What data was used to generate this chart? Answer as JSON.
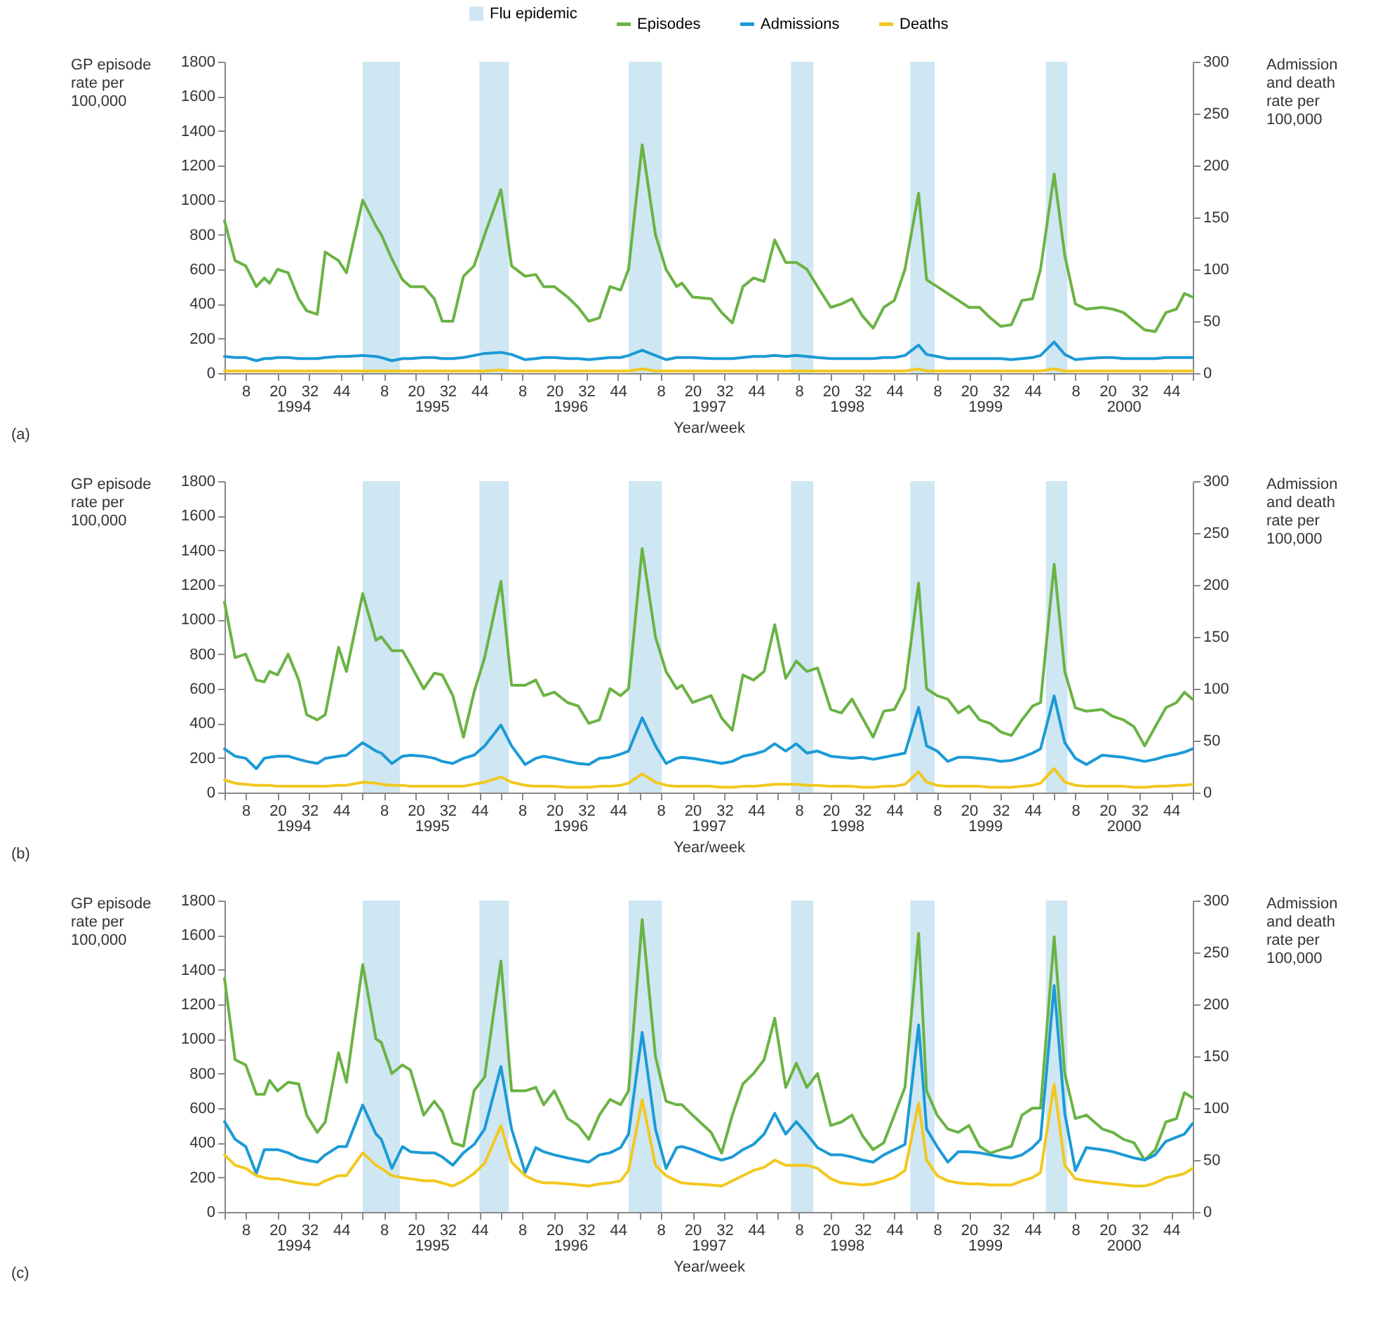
{
  "chart_data": [
    {
      "type": "line",
      "ylabel": "GP episode rate per 100,000",
      "y2label": "Admission and death rate per 100,000",
      "xlabel": "Year/week",
      "annotations": [
        "(a)"
      ],
      "legend": "top",
      "x": [
        "1994-01-01",
        "1994-01-29",
        "1994-02-26",
        "1994-03-26",
        "1994-04-16",
        "1994-04-30",
        "1994-05-21",
        "1994-06-18",
        "1994-07-16",
        "1994-08-06",
        "1994-09-03",
        "1994-09-24",
        "1994-10-29",
        "1994-11-19",
        "1995-01-01",
        "1995-02-05",
        "1995-02-19",
        "1995-03-19",
        "1995-04-16",
        "1995-05-07",
        "1995-06-11",
        "1995-07-09",
        "1995-07-30",
        "1995-08-27",
        "1995-09-24",
        "1995-10-22",
        "1995-11-19",
        "1996-01-01",
        "1996-01-29",
        "1996-03-05",
        "1996-04-02",
        "1996-04-23",
        "1996-05-21",
        "1996-06-25",
        "1996-07-23",
        "1996-08-20",
        "1996-09-17",
        "1996-10-15",
        "1996-11-12",
        "1996-12-03",
        "1997-01-08",
        "1997-02-12",
        "1997-03-12",
        "1997-04-09",
        "1997-04-23",
        "1997-05-21",
        "1997-07-09",
        "1997-08-06",
        "1997-09-03",
        "1997-10-01",
        "1997-10-29",
        "1997-11-26",
        "1997-12-24",
        "1998-01-22",
        "1998-02-19",
        "1998-03-19",
        "1998-04-16",
        "1998-05-21",
        "1998-06-18",
        "1998-07-16",
        "1998-08-13",
        "1998-09-10",
        "1998-10-08",
        "1998-11-05",
        "1998-12-03",
        "1999-01-08",
        "1999-01-29",
        "1999-02-26",
        "1999-03-26",
        "1999-04-23",
        "1999-05-21",
        "1999-06-18",
        "1999-07-16",
        "1999-08-13",
        "1999-09-10",
        "1999-10-08",
        "1999-11-05",
        "1999-11-26",
        "2000-01-01",
        "2000-01-29",
        "2000-02-26",
        "2000-03-26",
        "2000-05-07",
        "2000-06-04",
        "2000-07-02",
        "2000-07-30",
        "2000-08-27",
        "2000-09-24",
        "2000-10-22",
        "2000-11-19",
        "2000-12-10",
        "2000-12-31"
      ],
      "xlim": [
        "1994-01-01",
        "2001-01-01"
      ],
      "xticks": [
        {
          "value": "1994-01-01",
          "label": null
        },
        {
          "value": "1994-02-26",
          "label": "8"
        },
        {
          "value": "1994-05-21",
          "label": "20"
        },
        {
          "value": "1994-08-13",
          "label": "32"
        },
        {
          "value": "1994-11-05",
          "label": "44"
        },
        {
          "value": "1995-01-01",
          "label": null
        },
        {
          "value": "1995-02-26",
          "label": "8"
        },
        {
          "value": "1995-05-21",
          "label": "20"
        },
        {
          "value": "1995-08-13",
          "label": "32"
        },
        {
          "value": "1995-11-05",
          "label": "44"
        },
        {
          "value": "1996-01-01",
          "label": null
        },
        {
          "value": "1996-02-26",
          "label": "8"
        },
        {
          "value": "1996-05-21",
          "label": "20"
        },
        {
          "value": "1996-08-13",
          "label": "32"
        },
        {
          "value": "1996-11-05",
          "label": "44"
        },
        {
          "value": "1997-01-01",
          "label": null
        },
        {
          "value": "1997-02-26",
          "label": "8"
        },
        {
          "value": "1997-05-21",
          "label": "20"
        },
        {
          "value": "1997-08-13",
          "label": "32"
        },
        {
          "value": "1997-11-05",
          "label": "44"
        },
        {
          "value": "1998-01-01",
          "label": null
        },
        {
          "value": "1998-02-26",
          "label": "8"
        },
        {
          "value": "1998-05-21",
          "label": "20"
        },
        {
          "value": "1998-08-13",
          "label": "32"
        },
        {
          "value": "1998-11-05",
          "label": "44"
        },
        {
          "value": "1999-01-01",
          "label": null
        },
        {
          "value": "1999-02-26",
          "label": "8"
        },
        {
          "value": "1999-05-21",
          "label": "20"
        },
        {
          "value": "1999-08-13",
          "label": "32"
        },
        {
          "value": "1999-11-05",
          "label": "44"
        },
        {
          "value": "2000-01-01",
          "label": null
        },
        {
          "value": "2000-02-26",
          "label": "8"
        },
        {
          "value": "2000-05-21",
          "label": "20"
        },
        {
          "value": "2000-08-13",
          "label": "32"
        },
        {
          "value": "2000-11-05",
          "label": "44"
        },
        {
          "value": "2001-01-01",
          "label": null
        }
      ],
      "x2lim": [
        "1994-01-01",
        "2001-01-01"
      ],
      "x2ticks": [
        {
          "value": "1994-07-02",
          "label": "1994"
        },
        {
          "value": "1995-07-02",
          "label": "1995"
        },
        {
          "value": "1996-07-02",
          "label": "1996"
        },
        {
          "value": "1997-07-02",
          "label": "1997"
        },
        {
          "value": "1998-07-02",
          "label": "1998"
        },
        {
          "value": "1999-07-02",
          "label": "1999"
        },
        {
          "value": "2000-07-02",
          "label": "2000"
        }
      ],
      "ylim": [
        0,
        1800
      ],
      "yticks": [
        0,
        200,
        400,
        600,
        800,
        1000,
        1200,
        1400,
        1600,
        1800
      ],
      "y2lim": [
        0,
        300
      ],
      "y2ticks": [
        0,
        50,
        100,
        150,
        200,
        250,
        300
      ],
      "bands": [
        {
          "axis": "x",
          "from": "1995-01-01",
          "to": "1995-04-09",
          "color": "#cfe6f3",
          "label": "Flu epidemic"
        },
        {
          "axis": "x",
          "from": "1995-11-05",
          "to": "1996-01-22",
          "color": "#cfe6f3"
        },
        {
          "axis": "x",
          "from": "1996-12-03",
          "to": "1997-03-01",
          "color": "#cfe6f3"
        },
        {
          "axis": "x",
          "from": "1998-02-05",
          "to": "1998-04-05",
          "color": "#cfe6f3"
        },
        {
          "axis": "x",
          "from": "1998-12-17",
          "to": "1999-02-19",
          "color": "#cfe6f3"
        },
        {
          "axis": "x",
          "from": "1999-12-10",
          "to": "2000-02-05",
          "color": "#cfe6f3"
        }
      ],
      "series": [
        {
          "name": "Episodes",
          "color": "#6ab344",
          "values": [
            880,
            650,
            620,
            500,
            550,
            520,
            600,
            580,
            430,
            360,
            340,
            700,
            650,
            580,
            1000,
            850,
            800,
            660,
            540,
            500,
            500,
            430,
            300,
            300,
            560,
            620,
            800,
            1060,
            620,
            560,
            570,
            500,
            500,
            440,
            380,
            300,
            320,
            500,
            480,
            600,
            1320,
            800,
            600,
            500,
            520,
            440,
            430,
            350,
            290,
            500,
            550,
            530,
            770,
            640,
            640,
            600,
            500,
            380,
            400,
            430,
            330,
            260,
            380,
            420,
            600,
            1040,
            540,
            500,
            460,
            420,
            380,
            380,
            320,
            270,
            280,
            420,
            430,
            600,
            1150,
            680,
            400,
            370,
            380,
            370,
            350,
            300,
            250,
            240,
            350,
            370,
            460,
            440
          ]
        },
        {
          "name": "Admissions",
          "color": "#1b9ad6",
          "axis": "y2",
          "values": [
            16,
            15,
            15,
            12,
            14,
            14,
            15,
            15,
            14,
            14,
            14,
            15,
            16,
            16,
            17,
            16,
            15,
            12,
            14,
            14,
            15,
            15,
            14,
            14,
            15,
            17,
            19,
            20,
            18,
            13,
            14,
            15,
            15,
            14,
            14,
            13,
            14,
            15,
            15,
            17,
            22,
            17,
            13,
            15,
            15,
            15,
            14,
            14,
            14,
            15,
            16,
            16,
            17,
            16,
            17,
            16,
            15,
            14,
            14,
            14,
            14,
            14,
            15,
            15,
            17,
            27,
            18,
            16,
            14,
            14,
            14,
            14,
            14,
            14,
            13,
            14,
            15,
            17,
            30,
            18,
            13,
            14,
            15,
            15,
            14,
            14,
            14,
            14,
            15,
            15,
            15,
            15
          ]
        },
        {
          "name": "Deaths",
          "color": "#f2c81e",
          "axis": "y2",
          "values": [
            2,
            2,
            2,
            2,
            2,
            2,
            2,
            2,
            2,
            2,
            2,
            2,
            2,
            2,
            2,
            2,
            2,
            2,
            2,
            2,
            2,
            2,
            2,
            2,
            2,
            2,
            2,
            3,
            2,
            2,
            2,
            2,
            2,
            2,
            2,
            2,
            2,
            2,
            2,
            2,
            4,
            2,
            2,
            2,
            2,
            2,
            2,
            2,
            2,
            2,
            2,
            2,
            2,
            2,
            2,
            2,
            2,
            2,
            2,
            2,
            2,
            2,
            2,
            2,
            2,
            4,
            2,
            2,
            2,
            2,
            2,
            2,
            2,
            2,
            2,
            2,
            2,
            2,
            4,
            2,
            2,
            2,
            2,
            2,
            2,
            2,
            2,
            2,
            2,
            2,
            2,
            2
          ]
        }
      ]
    },
    {
      "type": "line",
      "ylabel": "GP episode rate per 100,000",
      "y2label": "Admission and death rate per 100,000",
      "xlabel": "Year/week",
      "annotations": [
        "(b)"
      ],
      "x": [
        "1994-01-01",
        "1994-01-29",
        "1994-02-26",
        "1994-03-26",
        "1994-04-16",
        "1994-04-30",
        "1994-05-21",
        "1994-06-18",
        "1994-07-16",
        "1994-08-06",
        "1994-09-03",
        "1994-09-24",
        "1994-10-29",
        "1994-11-19",
        "1995-01-01",
        "1995-02-05",
        "1995-02-19",
        "1995-03-19",
        "1995-04-16",
        "1995-05-07",
        "1995-06-11",
        "1995-07-09",
        "1995-07-30",
        "1995-08-27",
        "1995-09-24",
        "1995-10-22",
        "1995-11-19",
        "1996-01-01",
        "1996-01-29",
        "1996-03-05",
        "1996-04-02",
        "1996-04-23",
        "1996-05-21",
        "1996-06-25",
        "1996-07-23",
        "1996-08-20",
        "1996-09-17",
        "1996-10-15",
        "1996-11-12",
        "1996-12-03",
        "1997-01-08",
        "1997-02-12",
        "1997-03-12",
        "1997-04-09",
        "1997-04-23",
        "1997-05-21",
        "1997-07-09",
        "1997-08-06",
        "1997-09-03",
        "1997-10-01",
        "1997-10-29",
        "1997-11-26",
        "1997-12-24",
        "1998-01-22",
        "1998-02-19",
        "1998-03-19",
        "1998-04-16",
        "1998-05-21",
        "1998-06-18",
        "1998-07-16",
        "1998-08-13",
        "1998-09-10",
        "1998-10-08",
        "1998-11-05",
        "1998-12-03",
        "1999-01-08",
        "1999-01-29",
        "1999-02-26",
        "1999-03-26",
        "1999-04-23",
        "1999-05-21",
        "1999-06-18",
        "1999-07-16",
        "1999-08-13",
        "1999-09-10",
        "1999-10-08",
        "1999-11-05",
        "1999-11-26",
        "2000-01-01",
        "2000-01-29",
        "2000-02-26",
        "2000-03-26",
        "2000-05-07",
        "2000-06-04",
        "2000-07-02",
        "2000-07-30",
        "2000-08-27",
        "2000-09-24",
        "2000-10-22",
        "2000-11-19",
        "2000-12-10",
        "2000-12-31"
      ],
      "xlim": [
        "1994-01-01",
        "2001-01-01"
      ],
      "xticks": [
        {
          "value": "1994-01-01",
          "label": null
        },
        {
          "value": "1994-02-26",
          "label": "8"
        },
        {
          "value": "1994-05-21",
          "label": "20"
        },
        {
          "value": "1994-08-13",
          "label": "32"
        },
        {
          "value": "1994-11-05",
          "label": "44"
        },
        {
          "value": "1995-01-01",
          "label": null
        },
        {
          "value": "1995-02-26",
          "label": "8"
        },
        {
          "value": "1995-05-21",
          "label": "20"
        },
        {
          "value": "1995-08-13",
          "label": "32"
        },
        {
          "value": "1995-11-05",
          "label": "44"
        },
        {
          "value": "1996-01-01",
          "label": null
        },
        {
          "value": "1996-02-26",
          "label": "8"
        },
        {
          "value": "1996-05-21",
          "label": "20"
        },
        {
          "value": "1996-08-13",
          "label": "32"
        },
        {
          "value": "1996-11-05",
          "label": "44"
        },
        {
          "value": "1997-01-01",
          "label": null
        },
        {
          "value": "1997-02-26",
          "label": "8"
        },
        {
          "value": "1997-05-21",
          "label": "20"
        },
        {
          "value": "1997-08-13",
          "label": "32"
        },
        {
          "value": "1997-11-05",
          "label": "44"
        },
        {
          "value": "1998-01-01",
          "label": null
        },
        {
          "value": "1998-02-26",
          "label": "8"
        },
        {
          "value": "1998-05-21",
          "label": "20"
        },
        {
          "value": "1998-08-13",
          "label": "32"
        },
        {
          "value": "1998-11-05",
          "label": "44"
        },
        {
          "value": "1999-01-01",
          "label": null
        },
        {
          "value": "1999-02-26",
          "label": "8"
        },
        {
          "value": "1999-05-21",
          "label": "20"
        },
        {
          "value": "1999-08-13",
          "label": "32"
        },
        {
          "value": "1999-11-05",
          "label": "44"
        },
        {
          "value": "2000-01-01",
          "label": null
        },
        {
          "value": "2000-02-26",
          "label": "8"
        },
        {
          "value": "2000-05-21",
          "label": "20"
        },
        {
          "value": "2000-08-13",
          "label": "32"
        },
        {
          "value": "2000-11-05",
          "label": "44"
        },
        {
          "value": "2001-01-01",
          "label": null
        }
      ],
      "x2lim": [
        "1994-01-01",
        "2001-01-01"
      ],
      "x2ticks": [
        {
          "value": "1994-07-02",
          "label": "1994"
        },
        {
          "value": "1995-07-02",
          "label": "1995"
        },
        {
          "value": "1996-07-02",
          "label": "1996"
        },
        {
          "value": "1997-07-02",
          "label": "1997"
        },
        {
          "value": "1998-07-02",
          "label": "1998"
        },
        {
          "value": "1999-07-02",
          "label": "1999"
        },
        {
          "value": "2000-07-02",
          "label": "2000"
        }
      ],
      "ylim": [
        0,
        1800
      ],
      "yticks": [
        0,
        200,
        400,
        600,
        800,
        1000,
        1200,
        1400,
        1600,
        1800
      ],
      "y2lim": [
        0,
        300
      ],
      "y2ticks": [
        0,
        50,
        100,
        150,
        200,
        250,
        300
      ],
      "bands": [
        {
          "axis": "x",
          "from": "1995-01-01",
          "to": "1995-04-09",
          "color": "#cfe6f3"
        },
        {
          "axis": "x",
          "from": "1995-11-05",
          "to": "1996-01-22",
          "color": "#cfe6f3"
        },
        {
          "axis": "x",
          "from": "1996-12-03",
          "to": "1997-03-01",
          "color": "#cfe6f3"
        },
        {
          "axis": "x",
          "from": "1998-02-05",
          "to": "1998-04-05",
          "color": "#cfe6f3"
        },
        {
          "axis": "x",
          "from": "1998-12-17",
          "to": "1999-02-19",
          "color": "#cfe6f3"
        },
        {
          "axis": "x",
          "from": "1999-12-10",
          "to": "2000-02-05",
          "color": "#cfe6f3"
        }
      ],
      "series": [
        {
          "color": "#6ab344",
          "values": [
            1100,
            780,
            800,
            650,
            640,
            700,
            680,
            800,
            650,
            450,
            420,
            450,
            840,
            700,
            1150,
            880,
            900,
            820,
            820,
            740,
            600,
            690,
            680,
            560,
            320,
            580,
            780,
            1220,
            620,
            620,
            650,
            560,
            580,
            520,
            500,
            400,
            420,
            600,
            560,
            600,
            1410,
            900,
            700,
            600,
            620,
            520,
            560,
            430,
            360,
            680,
            650,
            700,
            970,
            660,
            760,
            700,
            720,
            480,
            460,
            540,
            430,
            320,
            470,
            480,
            600,
            1210,
            600,
            560,
            540,
            460,
            500,
            420,
            400,
            350,
            330,
            420,
            500,
            520,
            1320,
            700,
            490,
            470,
            480,
            440,
            420,
            380,
            270,
            380,
            490,
            520,
            580,
            540
          ]
        },
        {
          "color": "#1b9ad6",
          "axis": "y2",
          "values": [
            42,
            35,
            33,
            23,
            33,
            34,
            35,
            35,
            32,
            30,
            28,
            33,
            35,
            36,
            48,
            40,
            38,
            28,
            35,
            36,
            35,
            33,
            30,
            28,
            33,
            36,
            45,
            65,
            45,
            27,
            33,
            35,
            33,
            30,
            28,
            27,
            33,
            34,
            37,
            40,
            72,
            45,
            28,
            33,
            34,
            33,
            30,
            28,
            30,
            35,
            37,
            40,
            47,
            40,
            47,
            38,
            40,
            35,
            34,
            33,
            34,
            32,
            34,
            36,
            38,
            82,
            45,
            40,
            30,
            34,
            34,
            33,
            32,
            30,
            31,
            34,
            38,
            42,
            93,
            48,
            33,
            27,
            36,
            35,
            34,
            32,
            30,
            32,
            35,
            37,
            39,
            42
          ]
        },
        {
          "color": "#f2c81e",
          "axis": "y2",
          "values": [
            12,
            9,
            8,
            7,
            7,
            7,
            6,
            6,
            6,
            6,
            6,
            6,
            7,
            7,
            10,
            9,
            8,
            7,
            7,
            6,
            6,
            6,
            6,
            6,
            6,
            8,
            10,
            15,
            10,
            7,
            6,
            6,
            6,
            5,
            5,
            5,
            6,
            6,
            7,
            9,
            18,
            10,
            7,
            6,
            6,
            6,
            6,
            5,
            5,
            6,
            6,
            7,
            8,
            8,
            8,
            7,
            7,
            6,
            6,
            6,
            5,
            5,
            6,
            6,
            8,
            20,
            10,
            7,
            6,
            6,
            6,
            6,
            5,
            5,
            5,
            6,
            7,
            9,
            23,
            10,
            7,
            6,
            6,
            6,
            6,
            5,
            5,
            6,
            6,
            7,
            7,
            8
          ]
        }
      ]
    },
    {
      "type": "line",
      "ylabel": "GP episode rate per 100,000",
      "y2label": "Admission and death rate per 100,000",
      "xlabel": "Year/week",
      "annotations": [
        "(c)"
      ],
      "x": [
        "1994-01-01",
        "1994-01-29",
        "1994-02-26",
        "1994-03-26",
        "1994-04-16",
        "1994-04-30",
        "1994-05-21",
        "1994-06-18",
        "1994-07-16",
        "1994-08-06",
        "1994-09-03",
        "1994-09-24",
        "1994-10-29",
        "1994-11-19",
        "1995-01-01",
        "1995-02-05",
        "1995-02-19",
        "1995-03-19",
        "1995-04-16",
        "1995-05-07",
        "1995-06-11",
        "1995-07-09",
        "1995-07-30",
        "1995-08-27",
        "1995-09-24",
        "1995-10-22",
        "1995-11-19",
        "1996-01-01",
        "1996-01-29",
        "1996-03-05",
        "1996-04-02",
        "1996-04-23",
        "1996-05-21",
        "1996-06-25",
        "1996-07-23",
        "1996-08-20",
        "1996-09-17",
        "1996-10-15",
        "1996-11-12",
        "1996-12-03",
        "1997-01-08",
        "1997-02-12",
        "1997-03-12",
        "1997-04-09",
        "1997-04-23",
        "1997-05-21",
        "1997-07-09",
        "1997-08-06",
        "1997-09-03",
        "1997-10-01",
        "1997-10-29",
        "1997-11-26",
        "1997-12-24",
        "1998-01-22",
        "1998-02-19",
        "1998-03-19",
        "1998-04-16",
        "1998-05-21",
        "1998-06-18",
        "1998-07-16",
        "1998-08-13",
        "1998-09-10",
        "1998-10-08",
        "1998-11-05",
        "1998-12-03",
        "1999-01-08",
        "1999-01-29",
        "1999-02-26",
        "1999-03-26",
        "1999-04-23",
        "1999-05-21",
        "1999-06-18",
        "1999-07-16",
        "1999-08-13",
        "1999-09-10",
        "1999-10-08",
        "1999-11-05",
        "1999-11-26",
        "2000-01-01",
        "2000-01-29",
        "2000-02-26",
        "2000-03-26",
        "2000-05-07",
        "2000-06-04",
        "2000-07-02",
        "2000-07-30",
        "2000-08-27",
        "2000-09-24",
        "2000-10-22",
        "2000-11-19",
        "2000-12-10",
        "2000-12-31"
      ],
      "xlim": [
        "1994-01-01",
        "2001-01-01"
      ],
      "xticks": [
        {
          "value": "1994-01-01",
          "label": null
        },
        {
          "value": "1994-02-26",
          "label": "8"
        },
        {
          "value": "1994-05-21",
          "label": "20"
        },
        {
          "value": "1994-08-13",
          "label": "32"
        },
        {
          "value": "1994-11-05",
          "label": "44"
        },
        {
          "value": "1995-01-01",
          "label": null
        },
        {
          "value": "1995-02-26",
          "label": "8"
        },
        {
          "value": "1995-05-21",
          "label": "20"
        },
        {
          "value": "1995-08-13",
          "label": "32"
        },
        {
          "value": "1995-11-05",
          "label": "44"
        },
        {
          "value": "1996-01-01",
          "label": null
        },
        {
          "value": "1996-02-26",
          "label": "8"
        },
        {
          "value": "1996-05-21",
          "label": "20"
        },
        {
          "value": "1996-08-13",
          "label": "32"
        },
        {
          "value": "1996-11-05",
          "label": "44"
        },
        {
          "value": "1997-01-01",
          "label": null
        },
        {
          "value": "1997-02-26",
          "label": "8"
        },
        {
          "value": "1997-05-21",
          "label": "20"
        },
        {
          "value": "1997-08-13",
          "label": "32"
        },
        {
          "value": "1997-11-05",
          "label": "44"
        },
        {
          "value": "1998-01-01",
          "label": null
        },
        {
          "value": "1998-02-26",
          "label": "8"
        },
        {
          "value": "1998-05-21",
          "label": "20"
        },
        {
          "value": "1998-08-13",
          "label": "32"
        },
        {
          "value": "1998-11-05",
          "label": "44"
        },
        {
          "value": "1999-01-01",
          "label": null
        },
        {
          "value": "1999-02-26",
          "label": "8"
        },
        {
          "value": "1999-05-21",
          "label": "20"
        },
        {
          "value": "1999-08-13",
          "label": "32"
        },
        {
          "value": "1999-11-05",
          "label": "44"
        },
        {
          "value": "2000-01-01",
          "label": null
        },
        {
          "value": "2000-02-26",
          "label": "8"
        },
        {
          "value": "2000-05-21",
          "label": "20"
        },
        {
          "value": "2000-08-13",
          "label": "32"
        },
        {
          "value": "2000-11-05",
          "label": "44"
        },
        {
          "value": "2001-01-01",
          "label": null
        }
      ],
      "x2lim": [
        "1994-01-01",
        "2001-01-01"
      ],
      "x2ticks": [
        {
          "value": "1994-07-02",
          "label": "1994"
        },
        {
          "value": "1995-07-02",
          "label": "1995"
        },
        {
          "value": "1996-07-02",
          "label": "1996"
        },
        {
          "value": "1997-07-02",
          "label": "1997"
        },
        {
          "value": "1998-07-02",
          "label": "1998"
        },
        {
          "value": "1999-07-02",
          "label": "1999"
        },
        {
          "value": "2000-07-02",
          "label": "2000"
        }
      ],
      "ylim": [
        0,
        1800
      ],
      "yticks": [
        0,
        200,
        400,
        600,
        800,
        1000,
        1200,
        1400,
        1600,
        1800
      ],
      "y2lim": [
        0,
        300
      ],
      "y2ticks": [
        0,
        50,
        100,
        150,
        200,
        250,
        300
      ],
      "bands": [
        {
          "axis": "x",
          "from": "1995-01-01",
          "to": "1995-04-09",
          "color": "#cfe6f3"
        },
        {
          "axis": "x",
          "from": "1995-11-05",
          "to": "1996-01-22",
          "color": "#cfe6f3"
        },
        {
          "axis": "x",
          "from": "1996-12-03",
          "to": "1997-03-01",
          "color": "#cfe6f3"
        },
        {
          "axis": "x",
          "from": "1998-02-05",
          "to": "1998-04-05",
          "color": "#cfe6f3"
        },
        {
          "axis": "x",
          "from": "1998-12-17",
          "to": "1999-02-19",
          "color": "#cfe6f3"
        },
        {
          "axis": "x",
          "from": "1999-12-10",
          "to": "2000-02-05",
          "color": "#cfe6f3"
        }
      ],
      "series": [
        {
          "color": "#6ab344",
          "values": [
            1350,
            880,
            850,
            680,
            680,
            760,
            700,
            750,
            740,
            560,
            460,
            520,
            920,
            750,
            1430,
            1000,
            980,
            800,
            850,
            820,
            560,
            640,
            580,
            400,
            380,
            700,
            780,
            1450,
            700,
            700,
            720,
            620,
            700,
            540,
            500,
            420,
            560,
            650,
            620,
            700,
            1690,
            900,
            640,
            620,
            620,
            560,
            460,
            340,
            560,
            740,
            800,
            880,
            1120,
            720,
            860,
            720,
            800,
            500,
            520,
            560,
            440,
            360,
            400,
            560,
            720,
            1610,
            700,
            560,
            480,
            460,
            500,
            380,
            340,
            360,
            380,
            560,
            600,
            600,
            1590,
            800,
            540,
            560,
            480,
            460,
            420,
            400,
            300,
            360,
            520,
            540,
            690,
            660
          ]
        },
        {
          "color": "#1b9ad6",
          "axis": "y2",
          "values": [
            87,
            70,
            63,
            37,
            60,
            60,
            60,
            57,
            52,
            50,
            48,
            55,
            63,
            63,
            103,
            75,
            70,
            42,
            63,
            58,
            57,
            57,
            53,
            45,
            57,
            65,
            80,
            140,
            80,
            38,
            62,
            58,
            55,
            52,
            50,
            48,
            55,
            57,
            62,
            75,
            173,
            80,
            42,
            62,
            63,
            60,
            53,
            50,
            53,
            60,
            65,
            75,
            95,
            75,
            87,
            75,
            62,
            55,
            55,
            53,
            50,
            48,
            55,
            60,
            65,
            180,
            80,
            63,
            48,
            58,
            58,
            57,
            55,
            53,
            52,
            55,
            62,
            70,
            218,
            95,
            40,
            62,
            60,
            58,
            55,
            52,
            50,
            55,
            68,
            72,
            75,
            85
          ]
        },
        {
          "color": "#f2c81e",
          "axis": "y2",
          "values": [
            55,
            45,
            42,
            35,
            33,
            32,
            32,
            30,
            28,
            27,
            26,
            30,
            35,
            35,
            57,
            45,
            42,
            35,
            33,
            32,
            30,
            30,
            28,
            25,
            30,
            37,
            47,
            83,
            48,
            35,
            30,
            28,
            28,
            27,
            26,
            25,
            27,
            28,
            30,
            40,
            108,
            45,
            35,
            30,
            28,
            27,
            26,
            25,
            30,
            35,
            40,
            43,
            50,
            45,
            45,
            45,
            42,
            32,
            28,
            27,
            26,
            27,
            30,
            33,
            40,
            105,
            50,
            35,
            30,
            28,
            27,
            27,
            26,
            26,
            26,
            30,
            33,
            38,
            123,
            45,
            32,
            30,
            28,
            27,
            26,
            25,
            25,
            28,
            33,
            35,
            37,
            42
          ]
        }
      ]
    }
  ]
}
